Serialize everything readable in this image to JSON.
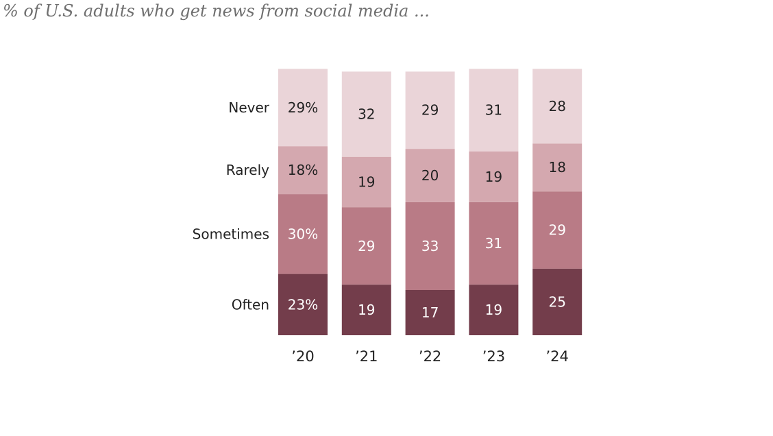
{
  "subtitle": "% of U.S. adults who get news from social media ...",
  "chart_data": {
    "type": "bar",
    "stacked": true,
    "categories": [
      "’20",
      "’21",
      "’22",
      "’23",
      "’24"
    ],
    "series": [
      {
        "name": "Often",
        "color": "#733d4b",
        "values": [
          23,
          19,
          17,
          19,
          25
        ],
        "labels": [
          "23%",
          "19",
          "17",
          "19",
          "25"
        ]
      },
      {
        "name": "Sometimes",
        "color": "#b97b86",
        "values": [
          30,
          29,
          33,
          31,
          29
        ],
        "labels": [
          "30%",
          "29",
          "33",
          "31",
          "29"
        ]
      },
      {
        "name": "Rarely",
        "color": "#d4a8af",
        "values": [
          18,
          19,
          20,
          19,
          18
        ],
        "labels": [
          "18%",
          "19",
          "20",
          "19",
          "18"
        ]
      },
      {
        "name": "Never",
        "color": "#ead4d8",
        "values": [
          29,
          32,
          29,
          31,
          28
        ],
        "labels": [
          "29%",
          "32",
          "29",
          "31",
          "28"
        ]
      }
    ],
    "row_labels": [
      "Never",
      "Rarely",
      "Sometimes",
      "Often"
    ],
    "label_colors": {
      "Often": "#ffffff",
      "Sometimes": "#ffffff",
      "Rarely": "#222222",
      "Never": "#222222"
    }
  }
}
